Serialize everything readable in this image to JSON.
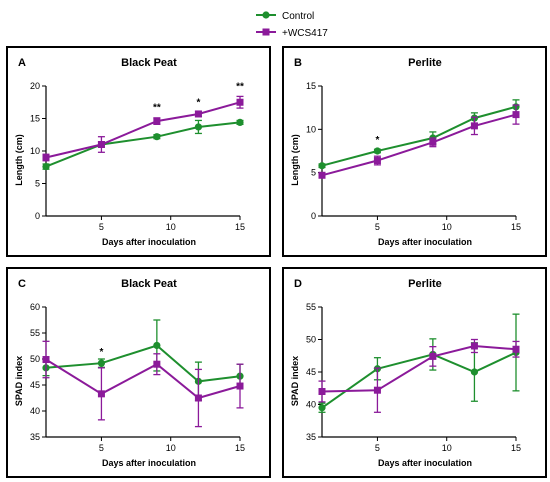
{
  "legend": {
    "entries": [
      {
        "name": "Control",
        "color": "#1e8f2e",
        "marker": "circle"
      },
      {
        "name": "+WCS417",
        "color": "#8b1a9a",
        "marker": "square"
      }
    ]
  },
  "chart_data": [
    {
      "type": "line",
      "letter": "A",
      "title": "Black Peat",
      "xlabel": "Days after inoculation",
      "ylabel": "Length (cm)",
      "xlim": [
        1,
        15
      ],
      "ylim": [
        0,
        20
      ],
      "xticks": [
        5,
        10,
        15
      ],
      "yticks": [
        0,
        5,
        10,
        15,
        20
      ],
      "x": [
        1,
        5,
        9,
        12,
        15
      ],
      "series": [
        {
          "name": "Control",
          "color": "#1e8f2e",
          "marker": "circle",
          "values": [
            7.6,
            11.0,
            12.2,
            13.7,
            14.4
          ],
          "errors": [
            0.4,
            0.4,
            0.3,
            1.0,
            0.3
          ]
        },
        {
          "name": "+WCS417",
          "color": "#8b1a9a",
          "marker": "square",
          "values": [
            9.0,
            11.0,
            14.6,
            15.7,
            17.5
          ],
          "errors": [
            0.5,
            1.2,
            0.5,
            0.4,
            0.9
          ]
        }
      ],
      "annotations": [
        {
          "x": 9,
          "y": 16.2,
          "text": "**"
        },
        {
          "x": 12,
          "y": 17.0,
          "text": "*"
        },
        {
          "x": 15,
          "y": 19.5,
          "text": "**"
        }
      ]
    },
    {
      "type": "line",
      "letter": "B",
      "title": "Perlite",
      "xlabel": "Days after inoculation",
      "ylabel": "Length (cm)",
      "xlim": [
        1,
        15
      ],
      "ylim": [
        0,
        15
      ],
      "xticks": [
        5,
        10,
        15
      ],
      "yticks": [
        0,
        5,
        10,
        15
      ],
      "x": [
        1,
        5,
        9,
        12,
        15
      ],
      "series": [
        {
          "name": "Control",
          "color": "#1e8f2e",
          "marker": "circle",
          "values": [
            5.8,
            7.5,
            9.0,
            11.3,
            12.6
          ],
          "errors": [
            0.2,
            0.2,
            0.7,
            0.6,
            0.8
          ]
        },
        {
          "name": "+WCS417",
          "color": "#8b1a9a",
          "marker": "square",
          "values": [
            4.7,
            6.4,
            8.5,
            10.4,
            11.7
          ],
          "errors": [
            0.2,
            0.5,
            0.5,
            1.0,
            1.1
          ]
        }
      ],
      "annotations": [
        {
          "x": 5,
          "y": 8.4,
          "text": "*"
        }
      ]
    },
    {
      "type": "line",
      "letter": "C",
      "title": "Black Peat",
      "xlabel": "Days after inoculation",
      "ylabel": "SPAD index",
      "xlim": [
        1,
        15
      ],
      "ylim": [
        35,
        60
      ],
      "xticks": [
        5,
        10,
        15
      ],
      "yticks": [
        35,
        40,
        45,
        50,
        55,
        60
      ],
      "x": [
        1,
        5,
        9,
        12,
        15
      ],
      "series": [
        {
          "name": "Control",
          "color": "#1e8f2e",
          "marker": "circle",
          "values": [
            48.3,
            49.2,
            52.6,
            45.7,
            46.7
          ],
          "errors": [
            1.5,
            0.8,
            4.9,
            3.7,
            2.3
          ]
        },
        {
          "name": "+WCS417",
          "color": "#8b1a9a",
          "marker": "square",
          "values": [
            49.9,
            43.3,
            49.0,
            42.5,
            44.8
          ],
          "errors": [
            3.5,
            5.0,
            2.0,
            5.5,
            4.2
          ]
        }
      ],
      "annotations": [
        {
          "x": 5,
          "y": 50.8,
          "text": "*"
        }
      ]
    },
    {
      "type": "line",
      "letter": "D",
      "title": "Perlite",
      "xlabel": "Days after inoculation",
      "ylabel": "SPAD index",
      "xlim": [
        1,
        15
      ],
      "ylim": [
        35,
        55
      ],
      "xticks": [
        5,
        10,
        15
      ],
      "yticks": [
        35,
        40,
        45,
        50,
        55
      ],
      "x": [
        1,
        5,
        9,
        12,
        15
      ],
      "series": [
        {
          "name": "Control",
          "color": "#1e8f2e",
          "marker": "circle",
          "values": [
            39.5,
            45.5,
            47.7,
            45.0,
            48.0
          ],
          "errors": [
            0.7,
            1.7,
            2.4,
            4.5,
            5.9
          ]
        },
        {
          "name": "+WCS417",
          "color": "#8b1a9a",
          "marker": "square",
          "values": [
            42.0,
            42.2,
            47.4,
            49.0,
            48.5
          ],
          "errors": [
            1.6,
            3.4,
            1.5,
            1.0,
            1.2
          ]
        }
      ],
      "annotations": []
    }
  ]
}
